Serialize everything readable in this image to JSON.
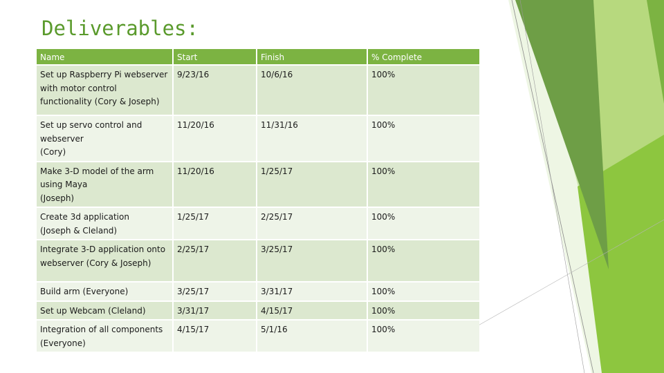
{
  "slide": {
    "title": "Deliverables:"
  },
  "table": {
    "headers": [
      "Name",
      "Start",
      "Finish",
      "% Complete"
    ],
    "rows": [
      {
        "name_lines": [
          "Set up Raspberry Pi webserver",
          "with motor control",
          "functionality (Cory & Joseph)"
        ],
        "start": "9/23/16",
        "finish": "10/6/16",
        "complete": "100%"
      },
      {
        "name_lines": [
          "Set up servo control and",
          "webserver",
          "(Cory)"
        ],
        "start": "11/20/16",
        "finish": "11/31/16",
        "complete": "100%"
      },
      {
        "name_lines": [
          "Make 3-D model of the arm",
          "using Maya",
          "(Joseph)"
        ],
        "start": "11/20/16",
        "finish": "1/25/17",
        "complete": "100%"
      },
      {
        "name_lines": [
          "Create 3d application",
          "(Joseph & Cleland)"
        ],
        "start": "1/25/17",
        "finish": "2/25/17",
        "complete": "100%"
      },
      {
        "name_lines": [
          "Integrate 3-D application onto",
          "webserver (Cory & Joseph)"
        ],
        "start": "2/25/17",
        "finish": "3/25/17",
        "complete": "100%"
      },
      {
        "name_lines": [
          "Build arm (Everyone)"
        ],
        "start": "3/25/17",
        "finish": "3/31/17",
        "complete": "100%"
      },
      {
        "name_lines": [
          "Set up Webcam (Cleland)"
        ],
        "start": "3/31/17",
        "finish": "4/15/17",
        "complete": "100%"
      },
      {
        "name_lines": [
          "Integration of all components",
          "(Everyone)"
        ],
        "start": "4/15/17",
        "finish": "5/1/16",
        "complete": "100%"
      }
    ]
  },
  "theme": {
    "accent": "#7cb342",
    "title_color": "#5a9a2c",
    "row_fill": "#dce8cf"
  }
}
